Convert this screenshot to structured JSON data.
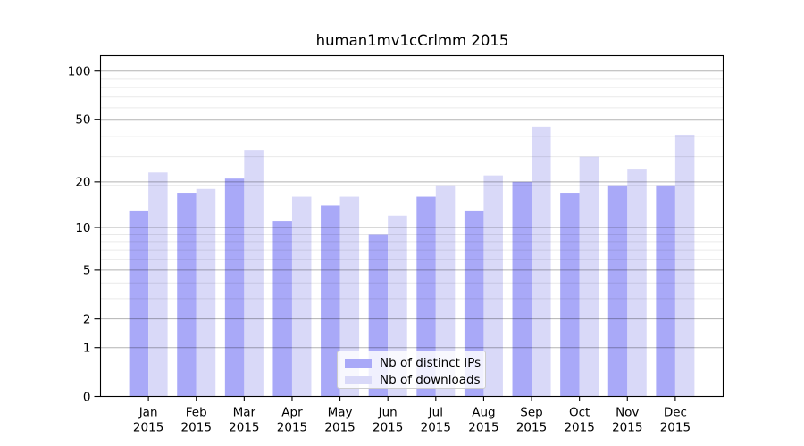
{
  "chart_data": {
    "type": "bar",
    "title": "human1mv1cCrlmm 2015",
    "year_label": "2015",
    "categories": [
      "Jan",
      "Feb",
      "Mar",
      "Apr",
      "May",
      "Jun",
      "Jul",
      "Aug",
      "Sep",
      "Oct",
      "Nov",
      "Dec"
    ],
    "series": [
      {
        "name": "Nb of distinct IPs",
        "color": "#a9a9f8",
        "values": [
          13,
          17,
          21,
          11,
          14,
          9,
          16,
          13,
          20,
          17,
          19,
          19
        ]
      },
      {
        "name": "Nb of downloads",
        "color": "#d9d9f8",
        "values": [
          23,
          18,
          32,
          16,
          16,
          12,
          19,
          22,
          45,
          29,
          24,
          40
        ]
      }
    ],
    "y_ticks": [
      100,
      50,
      20,
      10,
      5,
      2,
      1,
      0
    ],
    "scale": "log10(1+x)",
    "ylim": [
      0,
      125
    ],
    "grid": "horizontal major + minor",
    "legend_position": "inside lower center",
    "colors": {
      "axis": "#000000",
      "major_grid": "#b2b2b2",
      "minor_grid": "#e8e8e8",
      "legend_border": "#cccccc"
    }
  }
}
